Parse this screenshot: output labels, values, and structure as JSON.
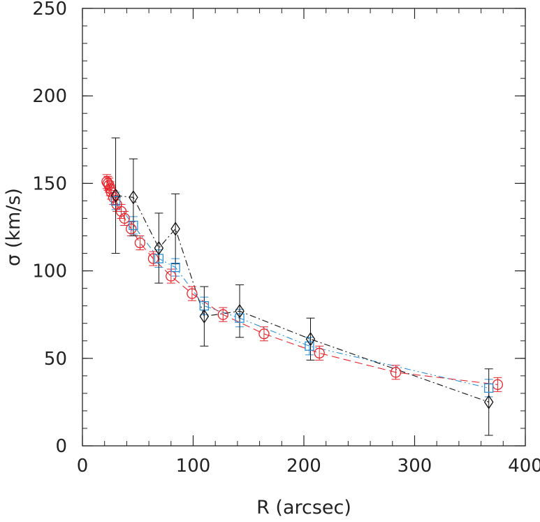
{
  "chart_data": {
    "type": "scatter",
    "title": "",
    "xlabel": "R (arcsec)",
    "ylabel": "σ (km/s)",
    "xlim": [
      0,
      400
    ],
    "ylim": [
      0,
      250
    ],
    "xticks": [
      0,
      100,
      200,
      300,
      400
    ],
    "yticks": [
      0,
      50,
      100,
      150,
      200,
      250
    ],
    "x_minor_step": 20,
    "y_minor_step": 10,
    "grid": false,
    "legend": "none",
    "series": [
      {
        "color": "#e8232a",
        "marker": "circle",
        "line": "dashed",
        "points": [
          {
            "x": 22,
            "y": 151,
            "err": 4
          },
          {
            "x": 23,
            "y": 150,
            "err": 4
          },
          {
            "x": 24,
            "y": 149,
            "err": 4
          },
          {
            "x": 25,
            "y": 147,
            "err": 4
          },
          {
            "x": 26,
            "y": 145,
            "err": 4
          },
          {
            "x": 28,
            "y": 142,
            "err": 4
          },
          {
            "x": 31,
            "y": 138,
            "err": 4
          },
          {
            "x": 35,
            "y": 134,
            "err": 4
          },
          {
            "x": 38,
            "y": 130,
            "err": 4
          },
          {
            "x": 44,
            "y": 124,
            "err": 4
          },
          {
            "x": 52,
            "y": 116,
            "err": 4
          },
          {
            "x": 64,
            "y": 107,
            "err": 4
          },
          {
            "x": 80,
            "y": 97,
            "err": 4
          },
          {
            "x": 99,
            "y": 87,
            "err": 4
          },
          {
            "x": 127,
            "y": 75,
            "err": 4
          },
          {
            "x": 164,
            "y": 64,
            "err": 4
          },
          {
            "x": 214,
            "y": 53,
            "err": 4
          },
          {
            "x": 283,
            "y": 42,
            "err": 4
          },
          {
            "x": 375,
            "y": 35,
            "err": 4
          }
        ]
      },
      {
        "color": "#2a8fd8",
        "marker": "square",
        "line": "dash-dot-dot",
        "points": [
          {
            "x": 30,
            "y": 140,
            "err": 5
          },
          {
            "x": 46,
            "y": 126,
            "err": 5
          },
          {
            "x": 69,
            "y": 107,
            "err": 5
          },
          {
            "x": 84,
            "y": 102,
            "err": 5
          },
          {
            "x": 110,
            "y": 80,
            "err": 5
          },
          {
            "x": 142,
            "y": 73,
            "err": 5
          },
          {
            "x": 205,
            "y": 57,
            "err": 5
          },
          {
            "x": 367,
            "y": 33,
            "err": 5
          }
        ]
      },
      {
        "color": "#111111",
        "marker": "diamond",
        "line": "dash-dot",
        "points": [
          {
            "x": 30,
            "y": 143,
            "err": 33
          },
          {
            "x": 46,
            "y": 142,
            "err": 22
          },
          {
            "x": 69,
            "y": 113,
            "err": 20
          },
          {
            "x": 84,
            "y": 124,
            "err": 20
          },
          {
            "x": 110,
            "y": 74,
            "err": 17
          },
          {
            "x": 142,
            "y": 77,
            "err": 15
          },
          {
            "x": 206,
            "y": 61,
            "err": 12
          },
          {
            "x": 367,
            "y": 25,
            "err": 19
          }
        ]
      }
    ]
  }
}
